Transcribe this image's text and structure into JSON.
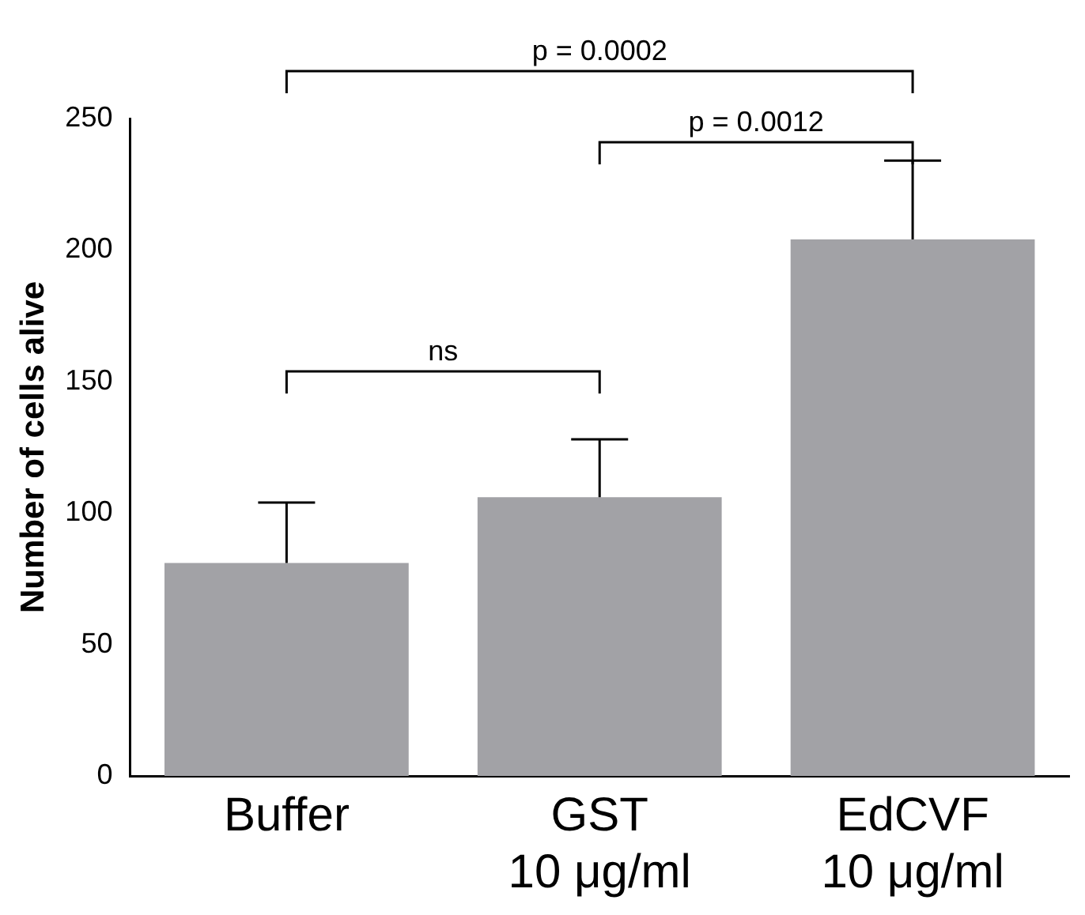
{
  "chart_data": {
    "type": "bar",
    "ylabel": "Number of cells alive",
    "categories": [
      "Buffer",
      "GST\n10 μg/ml",
      "EdCVF\n10 μg/ml"
    ],
    "values": [
      81,
      106,
      204
    ],
    "color": "#a2a2a6",
    "errors": [
      [
        81,
        104
      ],
      [
        106,
        128
      ],
      [
        204,
        234
      ]
    ],
    "ylim": [
      0,
      250
    ],
    "yticks": [
      0,
      50,
      100,
      150,
      200,
      250
    ],
    "grid": false,
    "legend": false,
    "annotations": [
      "ns",
      "p = 0.0012",
      "p = 0.0002"
    ]
  }
}
